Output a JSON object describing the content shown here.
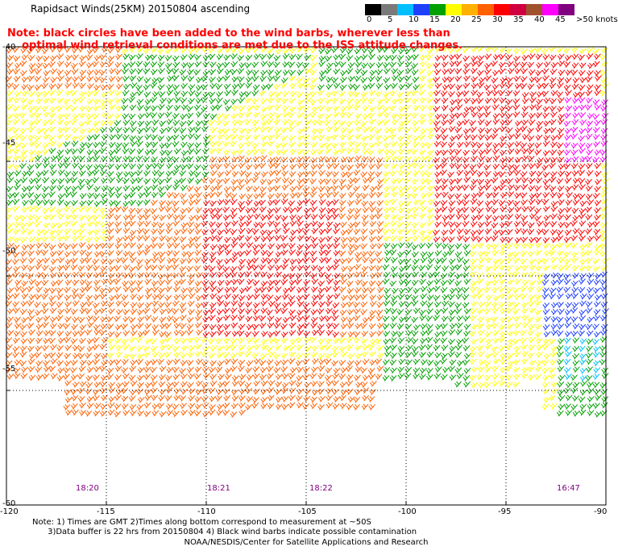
{
  "title": "Rapidsact Winds(25KM) 20150804 ascending",
  "note_line1": "Note: black circles have been added to the wind barbs, wherever less than",
  "note_line2": "optimal wind retrieval conditions are met due to the ISS attitude changes.",
  "colorbar": {
    "labels": [
      "0",
      "5",
      "10",
      "15",
      "20",
      "25",
      "30",
      "35",
      "40",
      "45",
      ">50 knots"
    ],
    "colors": [
      "#000000",
      "#7a7a7a",
      "#00bfff",
      "#1f3fff",
      "#00a000",
      "#ffff00",
      "#ffb000",
      "#ff6000",
      "#ff0000",
      "#d00040",
      "#a0522d",
      "#ff00ff",
      "#800080"
    ]
  },
  "axes": {
    "lat_labels": [
      "-40",
      "-45",
      "-50",
      "-55",
      "-60"
    ],
    "lon_labels": [
      "-120",
      "-115",
      "-110",
      "-105",
      "-100",
      "-95",
      "-90"
    ]
  },
  "pass_times": [
    "18:20",
    "18:21",
    "18:22",
    "16:47"
  ],
  "footnote_line1": "Note: 1) Times are GMT 2)Times along bottom correspond to measurement at ~50S",
  "footnote_line2": "3)Data buffer is 22 hrs from 20150804 4) Black wind barbs indicate possible contamination",
  "credit": "NOAA/NESDIS/Center for Satellite Applications and Research"
}
